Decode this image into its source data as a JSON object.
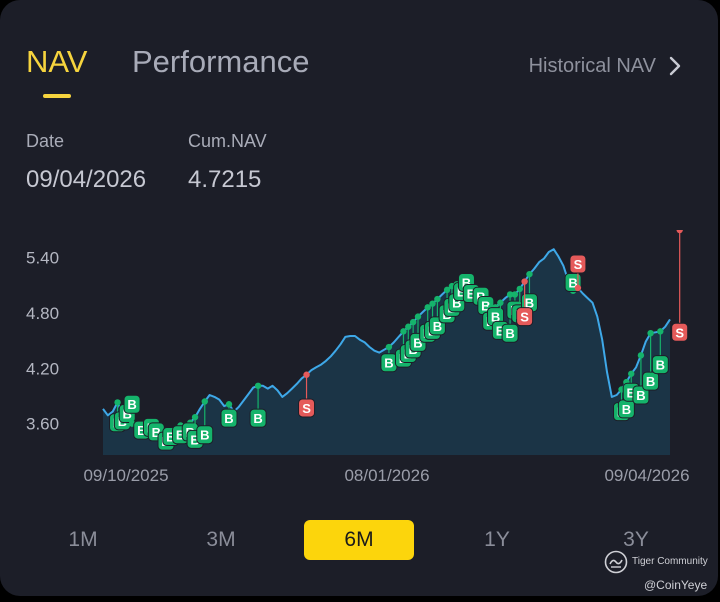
{
  "tabs": {
    "nav": "NAV",
    "performance": "Performance"
  },
  "historical_link": "Historical NAV",
  "info": {
    "date_label": "Date",
    "date_value": "09/04/2026",
    "cum_label": "Cum.NAV",
    "cum_value": "4.7215"
  },
  "colors": {
    "accent": "#f6d43e",
    "line": "#3ea8e8",
    "buy": "#15b36b",
    "sell": "#e55a5a",
    "card": "#1c1e28"
  },
  "range_buttons": [
    "1M",
    "3M",
    "6M",
    "1Y",
    "3Y"
  ],
  "selected_range": "6M",
  "watermark": {
    "brand": "Tiger Community",
    "handle": "@CoinYeye"
  },
  "chart_data": {
    "type": "area",
    "y_ticks": [
      "5.40",
      "4.80",
      "4.20",
      "3.60"
    ],
    "ylim": [
      3.25,
      5.58
    ],
    "x_ticks": [
      "09/10/2025",
      "08/01/2026",
      "09/04/2026"
    ],
    "values": [
      3.75,
      3.68,
      3.72,
      3.82,
      3.7,
      3.62,
      3.59,
      3.57,
      3.5,
      3.46,
      3.48,
      3.45,
      3.43,
      3.46,
      3.5,
      3.55,
      3.57,
      3.58,
      3.6,
      3.66,
      3.75,
      3.83,
      3.9,
      3.88,
      3.85,
      3.78,
      3.8,
      3.72,
      3.77,
      3.84,
      3.91,
      3.98,
      4.0,
      4.0,
      3.97,
      4.0,
      3.95,
      3.88,
      3.92,
      3.97,
      4.02,
      4.08,
      4.12,
      4.17,
      4.2,
      4.23,
      4.27,
      4.32,
      4.38,
      4.45,
      4.53,
      4.54,
      4.54,
      4.5,
      4.47,
      4.42,
      4.38,
      4.36,
      4.39,
      4.42,
      4.47,
      4.53,
      4.59,
      4.64,
      4.69,
      4.75,
      4.8,
      4.85,
      4.89,
      4.94,
      4.99,
      5.04,
      5.08,
      5.1,
      5.12,
      5.07,
      5.03,
      4.97,
      4.91,
      4.87,
      4.84,
      4.85,
      4.9,
      4.95,
      4.99,
      4.99,
      5.05,
      5.13,
      5.21,
      5.27,
      5.34,
      5.38,
      5.45,
      5.48,
      5.4,
      5.3,
      5.14,
      5.03,
      5.06,
      5.0,
      4.95,
      4.9,
      4.75,
      4.5,
      4.15,
      3.88,
      3.9,
      3.96,
      4.04,
      4.13,
      4.2,
      4.33,
      4.48,
      4.57,
      4.58,
      4.59,
      4.64,
      4.72
    ],
    "buy_points": [
      [
        3,
        3.6
      ],
      [
        4,
        3.62
      ],
      [
        5,
        3.7
      ],
      [
        6,
        3.8
      ],
      [
        8,
        3.52
      ],
      [
        10,
        3.55
      ],
      [
        11,
        3.5
      ],
      [
        13,
        3.4
      ],
      [
        14,
        3.45
      ],
      [
        16,
        3.47
      ],
      [
        18,
        3.5
      ],
      [
        19,
        3.42
      ],
      [
        21,
        3.47
      ],
      [
        26,
        3.65
      ],
      [
        32,
        3.65
      ],
      [
        59,
        4.25
      ],
      [
        62,
        4.3
      ],
      [
        63,
        4.35
      ],
      [
        64,
        4.4
      ],
      [
        65,
        4.47
      ],
      [
        67,
        4.57
      ],
      [
        68,
        4.6
      ],
      [
        69,
        4.65
      ],
      [
        71,
        4.78
      ],
      [
        72,
        4.85
      ],
      [
        73,
        4.9
      ],
      [
        74,
        5.02
      ],
      [
        75,
        5.12
      ],
      [
        76,
        5.0
      ],
      [
        78,
        4.97
      ],
      [
        79,
        4.87
      ],
      [
        80,
        4.7
      ],
      [
        81,
        4.75
      ],
      [
        82,
        4.6
      ],
      [
        84,
        4.57
      ],
      [
        85,
        4.82
      ],
      [
        86,
        4.78
      ],
      [
        88,
        4.9
      ],
      [
        97,
        5.12
      ],
      [
        107,
        3.72
      ],
      [
        108,
        3.75
      ],
      [
        109,
        3.93
      ],
      [
        111,
        3.9
      ],
      [
        113,
        4.05
      ],
      [
        115,
        4.23
      ]
    ],
    "sell_points": [
      [
        42,
        3.76
      ],
      [
        87,
        4.75
      ],
      [
        98,
        5.32
      ],
      [
        119,
        4.58
      ]
    ]
  }
}
